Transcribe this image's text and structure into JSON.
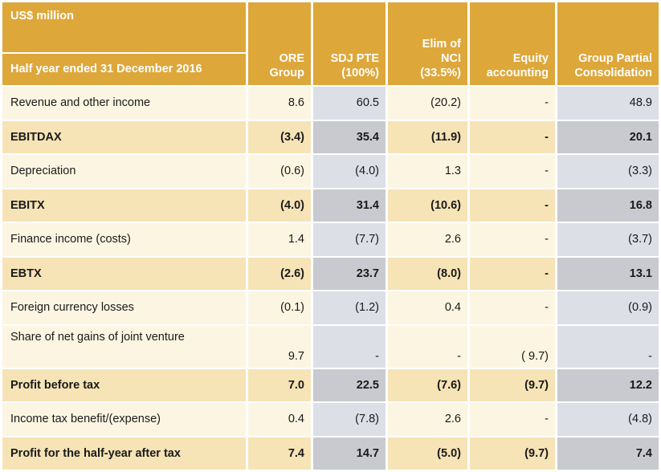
{
  "header": {
    "currency_label": "US$ million",
    "period_label": "Half year ended 31 December 2016",
    "columns": [
      [
        "ORE",
        "Group"
      ],
      [
        "SDJ PTE",
        "(100%)"
      ],
      [
        "Elim of",
        "NCI",
        "(33.5%)"
      ],
      [
        "Equity",
        "accounting"
      ],
      [
        "Group Partial",
        "Consolidation"
      ]
    ]
  },
  "rows": [
    {
      "label": "Revenue and other income",
      "values": [
        "8.6",
        "60.5",
        "(20.2)",
        "-",
        "48.9"
      ],
      "bold": false
    },
    {
      "label": "EBITDAX",
      "values": [
        "(3.4)",
        "35.4",
        "(11.9)",
        "-",
        "20.1"
      ],
      "bold": true
    },
    {
      "label": "Depreciation",
      "values": [
        "(0.6)",
        "(4.0)",
        "1.3",
        "-",
        "(3.3)"
      ],
      "bold": false
    },
    {
      "label": "EBITX",
      "values": [
        "(4.0)",
        "31.4",
        "(10.6)",
        "-",
        "16.8"
      ],
      "bold": true
    },
    {
      "label": "Finance income (costs)",
      "values": [
        "1.4",
        "(7.7)",
        "2.6",
        "-",
        "(3.7)"
      ],
      "bold": false
    },
    {
      "label": "EBTX",
      "values": [
        "(2.6)",
        "23.7",
        "(8.0)",
        "-",
        "13.1"
      ],
      "bold": true
    },
    {
      "label": "Foreign currency losses",
      "values": [
        "(0.1)",
        "(1.2)",
        "0.4",
        "-",
        "(0.9)"
      ],
      "bold": false
    },
    {
      "label": "Share of net gains of joint venture",
      "values": [
        "9.7",
        "-",
        "-",
        "( 9.7)",
        "-"
      ],
      "bold": false
    },
    {
      "label": "Profit before tax",
      "values": [
        "7.0",
        "22.5",
        "(7.6)",
        "(9.7)",
        "12.2"
      ],
      "bold": true
    },
    {
      "label": "Income tax benefit/(expense)",
      "values": [
        "0.4",
        "(7.8)",
        "2.6",
        "-",
        "(4.8)"
      ],
      "bold": false
    },
    {
      "label": "Profit for the half-year after tax",
      "values": [
        "7.4",
        "14.7",
        "(5.0)",
        "(9.7)",
        "7.4"
      ],
      "bold": true
    }
  ],
  "colors": {
    "header_gold": "#DDA73A",
    "row_light_cream": "#FCF5E2",
    "row_light_grey": "#DDDFE6",
    "row_dark_cream": "#F6E3B6",
    "row_dark_grey": "#C8CAD0"
  }
}
